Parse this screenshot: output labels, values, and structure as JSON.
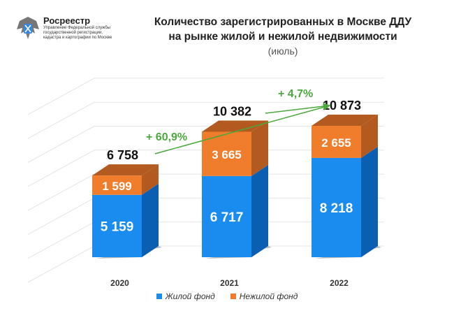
{
  "logo": {
    "name": "Росреестр",
    "subtitle": "Управление Федеральной службы государственной регистрации, кадастра и картографии по Москве"
  },
  "colors": {
    "residential": "#1a8cf0",
    "residential_side": "#0a5fb3",
    "nonresidential": "#ef7d2c",
    "nonresidential_top": "#b35a20",
    "arrow": "#4aa83c"
  },
  "chart_data": {
    "type": "bar",
    "stacked": true,
    "title": "Количество зарегистрированных в Москве ДДУ на рынке жилой и нежилой недвижимости",
    "subtitle": "(июль)",
    "categories": [
      "2020",
      "2021",
      "2022"
    ],
    "series": [
      {
        "name": "Жилой фонд",
        "values": [
          5159,
          6717,
          8218
        ]
      },
      {
        "name": "Нежилой фонд",
        "values": [
          1599,
          3665,
          2655
        ]
      }
    ],
    "totals": [
      6758,
      10382,
      10873
    ],
    "value_labels": {
      "Жилой фонд": [
        "5 159",
        "6 717",
        "8 218"
      ],
      "Нежилой фонд": [
        "1 599",
        "3 665",
        "2 655"
      ],
      "totals": [
        "6 758",
        "10 382",
        "10 873"
      ]
    },
    "annotations": [
      "+ 60,9%",
      "+ 4,7%"
    ],
    "legend": "bottom",
    "grid": true,
    "ylim": [
      0,
      12000
    ]
  }
}
